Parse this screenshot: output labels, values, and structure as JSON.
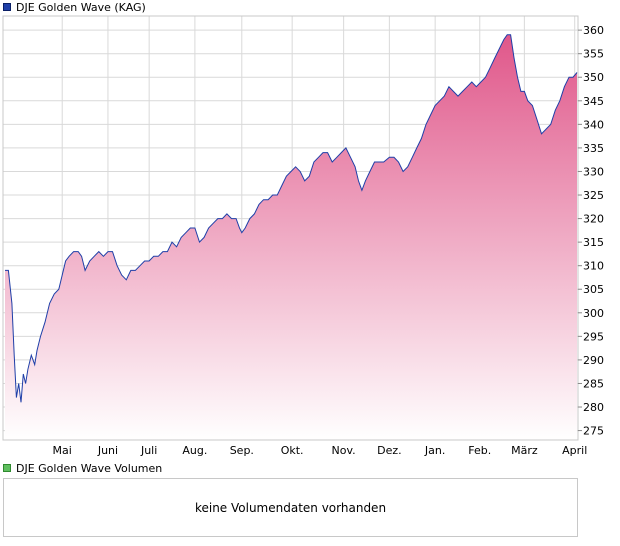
{
  "colors": {
    "line": "#1f3fa8",
    "fill_top": "#e0578a",
    "fill_bottom": "#ffffff",
    "grid": "#d9d9d9",
    "frame": "#c8c8c8",
    "price_swatch": "#1f3fa8",
    "volume_swatch": "#5fbf5f"
  },
  "volume": {
    "legend": "DJE Golden Wave Volumen",
    "empty_message": "keine Volumendaten vorhanden"
  },
  "chart_data": {
    "type": "area",
    "title": "DJE Golden Wave (KAG)",
    "series": [
      {
        "name": "DJE Golden Wave (KAG)"
      }
    ],
    "y_ticks": [
      275,
      280,
      285,
      290,
      295,
      300,
      305,
      310,
      315,
      320,
      325,
      330,
      335,
      340,
      345,
      350,
      355,
      360
    ],
    "ylim": [
      273,
      363
    ],
    "y_axis_position": "right",
    "grid": true,
    "x_ticks": [
      {
        "label": "Mai",
        "t": 0.1
      },
      {
        "label": "Juni",
        "t": 0.18
      },
      {
        "label": "Juli",
        "t": 0.252
      },
      {
        "label": "Aug.",
        "t": 0.332
      },
      {
        "label": "Sep.",
        "t": 0.414
      },
      {
        "label": "Okt.",
        "t": 0.502
      },
      {
        "label": "Nov.",
        "t": 0.592
      },
      {
        "label": "Dez.",
        "t": 0.672
      },
      {
        "label": "Jan.",
        "t": 0.752
      },
      {
        "label": "Feb.",
        "t": 0.83
      },
      {
        "label": "März",
        "t": 0.908
      },
      {
        "label": "April",
        "t": 0.996
      }
    ],
    "points": [
      [
        0.0,
        309
      ],
      [
        0.006,
        309
      ],
      [
        0.012,
        302
      ],
      [
        0.016,
        291
      ],
      [
        0.02,
        282
      ],
      [
        0.024,
        285
      ],
      [
        0.028,
        281
      ],
      [
        0.032,
        287
      ],
      [
        0.036,
        285
      ],
      [
        0.04,
        288
      ],
      [
        0.046,
        291
      ],
      [
        0.052,
        289
      ],
      [
        0.056,
        292
      ],
      [
        0.062,
        295
      ],
      [
        0.07,
        298
      ],
      [
        0.078,
        302
      ],
      [
        0.086,
        304
      ],
      [
        0.094,
        305
      ],
      [
        0.1,
        308
      ],
      [
        0.106,
        311
      ],
      [
        0.112,
        312
      ],
      [
        0.12,
        313
      ],
      [
        0.128,
        313
      ],
      [
        0.134,
        312
      ],
      [
        0.14,
        309
      ],
      [
        0.148,
        311
      ],
      [
        0.156,
        312
      ],
      [
        0.164,
        313
      ],
      [
        0.172,
        312
      ],
      [
        0.18,
        313
      ],
      [
        0.188,
        313
      ],
      [
        0.196,
        310
      ],
      [
        0.204,
        308
      ],
      [
        0.212,
        307
      ],
      [
        0.22,
        309
      ],
      [
        0.228,
        309
      ],
      [
        0.236,
        310
      ],
      [
        0.244,
        311
      ],
      [
        0.252,
        311
      ],
      [
        0.26,
        312
      ],
      [
        0.268,
        312
      ],
      [
        0.276,
        313
      ],
      [
        0.284,
        313
      ],
      [
        0.292,
        315
      ],
      [
        0.3,
        314
      ],
      [
        0.308,
        316
      ],
      [
        0.316,
        317
      ],
      [
        0.324,
        318
      ],
      [
        0.332,
        318
      ],
      [
        0.34,
        315
      ],
      [
        0.348,
        316
      ],
      [
        0.356,
        318
      ],
      [
        0.364,
        319
      ],
      [
        0.372,
        320
      ],
      [
        0.38,
        320
      ],
      [
        0.388,
        321
      ],
      [
        0.396,
        320
      ],
      [
        0.404,
        320
      ],
      [
        0.41,
        318
      ],
      [
        0.414,
        317
      ],
      [
        0.42,
        318
      ],
      [
        0.428,
        320
      ],
      [
        0.436,
        321
      ],
      [
        0.444,
        323
      ],
      [
        0.452,
        324
      ],
      [
        0.46,
        324
      ],
      [
        0.468,
        325
      ],
      [
        0.476,
        325
      ],
      [
        0.484,
        327
      ],
      [
        0.492,
        329
      ],
      [
        0.5,
        330
      ],
      [
        0.508,
        331
      ],
      [
        0.516,
        330
      ],
      [
        0.524,
        328
      ],
      [
        0.532,
        329
      ],
      [
        0.54,
        332
      ],
      [
        0.548,
        333
      ],
      [
        0.556,
        334
      ],
      [
        0.564,
        334
      ],
      [
        0.572,
        332
      ],
      [
        0.58,
        333
      ],
      [
        0.588,
        334
      ],
      [
        0.596,
        335
      ],
      [
        0.604,
        333
      ],
      [
        0.612,
        331
      ],
      [
        0.618,
        328
      ],
      [
        0.624,
        326
      ],
      [
        0.63,
        328
      ],
      [
        0.638,
        330
      ],
      [
        0.646,
        332
      ],
      [
        0.654,
        332
      ],
      [
        0.662,
        332
      ],
      [
        0.672,
        333
      ],
      [
        0.68,
        333
      ],
      [
        0.688,
        332
      ],
      [
        0.696,
        330
      ],
      [
        0.704,
        331
      ],
      [
        0.712,
        333
      ],
      [
        0.72,
        335
      ],
      [
        0.728,
        337
      ],
      [
        0.736,
        340
      ],
      [
        0.744,
        342
      ],
      [
        0.752,
        344
      ],
      [
        0.76,
        345
      ],
      [
        0.768,
        346
      ],
      [
        0.776,
        348
      ],
      [
        0.784,
        347
      ],
      [
        0.792,
        346
      ],
      [
        0.8,
        347
      ],
      [
        0.808,
        348
      ],
      [
        0.816,
        349
      ],
      [
        0.824,
        348
      ],
      [
        0.832,
        349
      ],
      [
        0.84,
        350
      ],
      [
        0.848,
        352
      ],
      [
        0.856,
        354
      ],
      [
        0.864,
        356
      ],
      [
        0.872,
        358
      ],
      [
        0.878,
        359
      ],
      [
        0.884,
        359
      ],
      [
        0.89,
        354
      ],
      [
        0.896,
        350
      ],
      [
        0.902,
        347
      ],
      [
        0.908,
        347
      ],
      [
        0.914,
        345
      ],
      [
        0.922,
        344
      ],
      [
        0.93,
        341
      ],
      [
        0.938,
        338
      ],
      [
        0.946,
        339
      ],
      [
        0.954,
        340
      ],
      [
        0.962,
        343
      ],
      [
        0.97,
        345
      ],
      [
        0.978,
        348
      ],
      [
        0.986,
        350
      ],
      [
        0.993,
        350
      ],
      [
        1.0,
        351
      ]
    ]
  }
}
